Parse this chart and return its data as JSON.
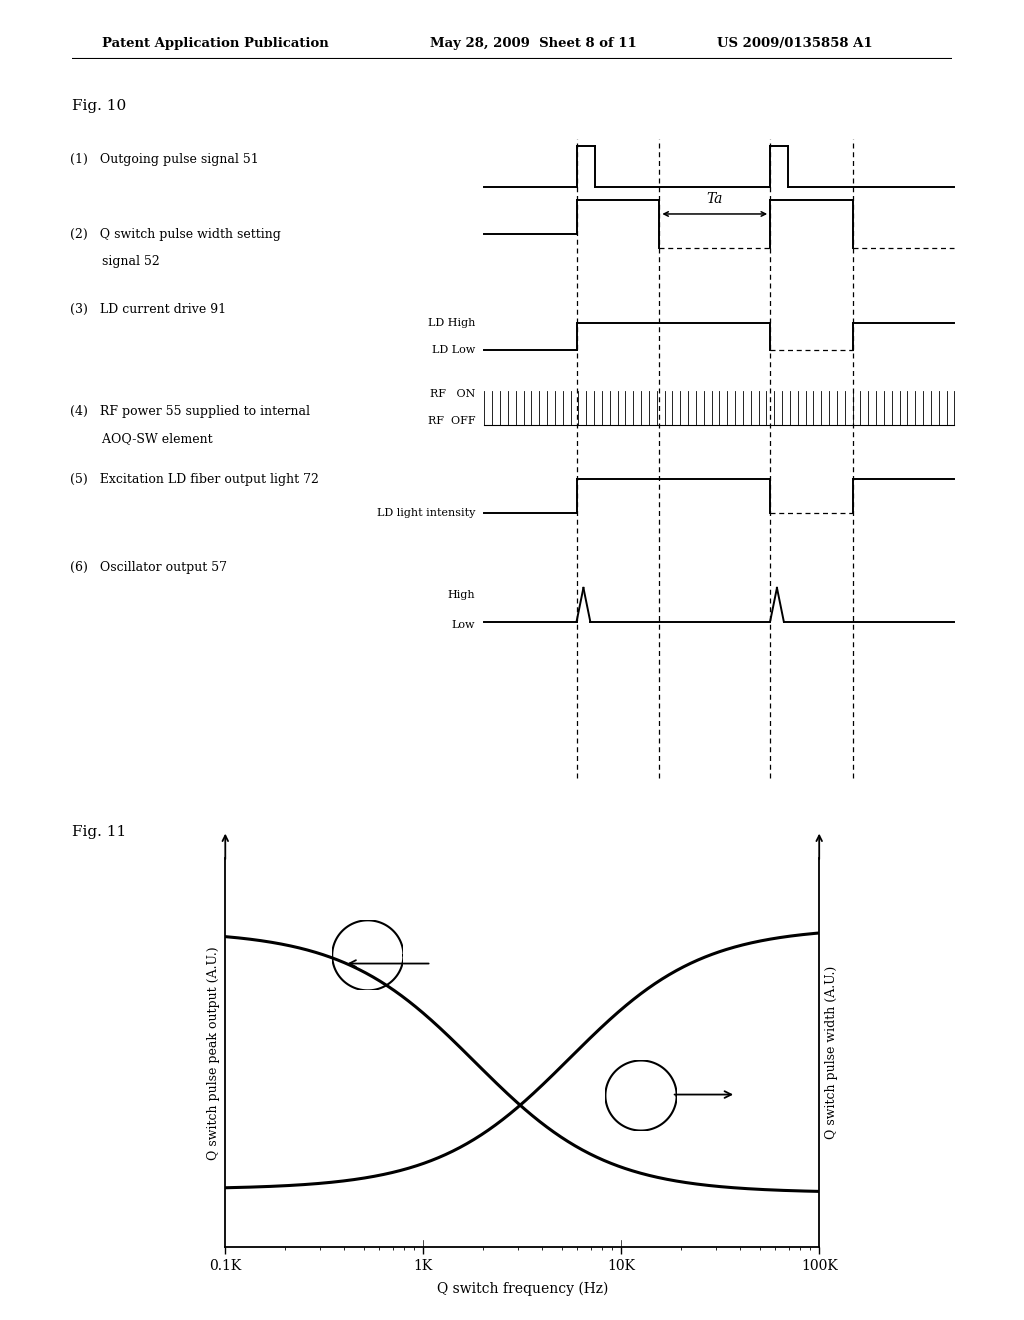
{
  "bg_color": "#ffffff",
  "header_text_left": "Patent Application Publication",
  "header_text_mid": "May 28, 2009  Sheet 8 of 11",
  "header_text_right": "US 2009/0135858 A1",
  "fig10_label": "Fig. 10",
  "fig11_label": "Fig. 11",
  "fig11_xlabel": "Q switch frequency (Hz)",
  "fig11_ylabel_left": "Q switch pulse peak output (A.U.)",
  "fig11_ylabel_right": "Q switch pulse width (A.U.)",
  "fig11_xticks_labels": [
    "0.1K",
    "1K",
    "10K",
    "100K"
  ],
  "fig11_xticks_vals": [
    100,
    1000,
    10000,
    100000
  ]
}
